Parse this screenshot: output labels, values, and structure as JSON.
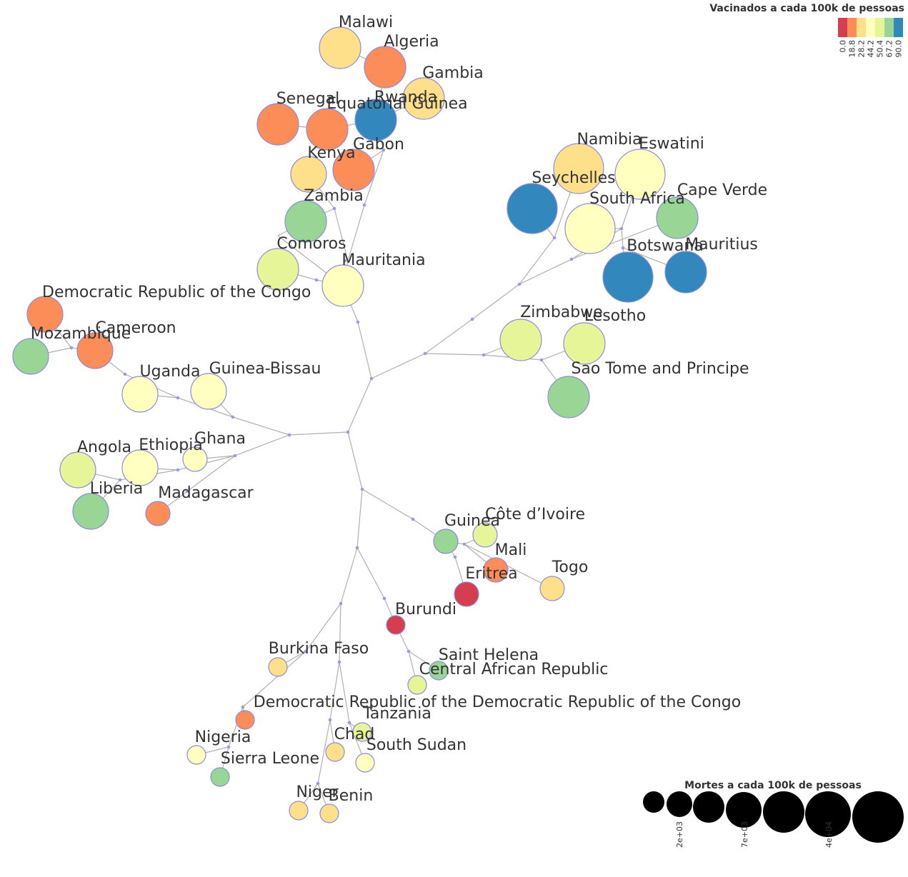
{
  "colors": {
    "scale": [
      "#d53e4f",
      "#fc8d59",
      "#fee08b",
      "#ffffbf",
      "#e6f598",
      "#99d594",
      "#3288bd"
    ],
    "edge": "#b0b0b0",
    "branch_point": "#9b9be0",
    "node_stroke": "#8c8cdc"
  },
  "color_legend": {
    "title": "Vacinados a cada 100k de pessoas",
    "ticks": [
      "0.0",
      "18.8",
      "28.2",
      "44.2",
      "50.4",
      "67.2",
      "90.0"
    ]
  },
  "size_legend": {
    "title": "Mortes a cada 100k de pessoas",
    "ticks": [
      "2e+03",
      "7e+03",
      "4e+04"
    ]
  },
  "nodes": [
    {
      "name": "Malawi",
      "color": 2,
      "size": 3
    },
    {
      "name": "Algeria",
      "color": 1,
      "size": 3
    },
    {
      "name": "Gambia",
      "color": 2,
      "size": 3
    },
    {
      "name": "Rwanda",
      "color": 6,
      "size": 3
    },
    {
      "name": "Equatorial Guinea",
      "color": 1,
      "size": 3
    },
    {
      "name": "Senegal",
      "color": 1,
      "size": 3
    },
    {
      "name": "Gabon",
      "color": 1,
      "size": 3
    },
    {
      "name": "Kenya",
      "color": 2,
      "size": 2
    },
    {
      "name": "Zambia",
      "color": 5,
      "size": 3
    },
    {
      "name": "Comoros",
      "color": 4,
      "size": 3
    },
    {
      "name": "Mauritania",
      "color": 3,
      "size": 3
    },
    {
      "name": "Namibia",
      "color": 2,
      "size": 4
    },
    {
      "name": "Eswatini",
      "color": 3,
      "size": 4
    },
    {
      "name": "Seychelles",
      "color": 6,
      "size": 4
    },
    {
      "name": "South Africa",
      "color": 3,
      "size": 4
    },
    {
      "name": "Cape Verde",
      "color": 5,
      "size": 3
    },
    {
      "name": "Botswana",
      "color": 6,
      "size": 4
    },
    {
      "name": "Mauritius",
      "color": 6,
      "size": 3
    },
    {
      "name": "Democratic Republic of the Congo",
      "color": 1,
      "size": 2
    },
    {
      "name": "Cameroon",
      "color": 1,
      "size": 2
    },
    {
      "name": "Mozambique",
      "color": 5,
      "size": 2
    },
    {
      "name": "Uganda",
      "color": 3,
      "size": 2
    },
    {
      "name": "Guinea-Bissau",
      "color": 3,
      "size": 2
    },
    {
      "name": "Zimbabwe",
      "color": 4,
      "size": 3
    },
    {
      "name": "Lesotho",
      "color": 4,
      "size": 3
    },
    {
      "name": "Sao Tome and Principe",
      "color": 5,
      "size": 3
    },
    {
      "name": "Angola",
      "color": 4,
      "size": 2
    },
    {
      "name": "Ethiopia",
      "color": 3,
      "size": 2
    },
    {
      "name": "Ghana",
      "color": 3,
      "size": 1
    },
    {
      "name": "Liberia",
      "color": 5,
      "size": 2
    },
    {
      "name": "Madagascar",
      "color": 1,
      "size": 1
    },
    {
      "name": "Guinea",
      "color": 5,
      "size": 1
    },
    {
      "name": "Côte d’Ivoire",
      "color": 4,
      "size": 1
    },
    {
      "name": "Mali",
      "color": 1,
      "size": 1
    },
    {
      "name": "Togo",
      "color": 2,
      "size": 1
    },
    {
      "name": "Eritrea",
      "color": 0,
      "size": 1
    },
    {
      "name": "Burundi",
      "color": 0,
      "size": 0
    },
    {
      "name": "Saint Helena",
      "color": 5,
      "size": 0
    },
    {
      "name": "Central African Republic",
      "color": 4,
      "size": 0
    },
    {
      "name": "Burkina Faso",
      "color": 2,
      "size": 0
    },
    {
      "name": "Democratic Republic of the Democratic Republic of the Congo",
      "color": 1,
      "size": 0
    },
    {
      "name": "Tanzania",
      "color": 4,
      "size": 0
    },
    {
      "name": "Chad",
      "color": 2,
      "size": 0
    },
    {
      "name": "South Sudan",
      "color": 3,
      "size": 0
    },
    {
      "name": "Nigeria",
      "color": 3,
      "size": 0
    },
    {
      "name": "Sierra Leone",
      "color": 5,
      "size": 0
    },
    {
      "name": "Niger",
      "color": 2,
      "size": 0
    },
    {
      "name": "Benin",
      "color": 2,
      "size": 0
    }
  ]
}
